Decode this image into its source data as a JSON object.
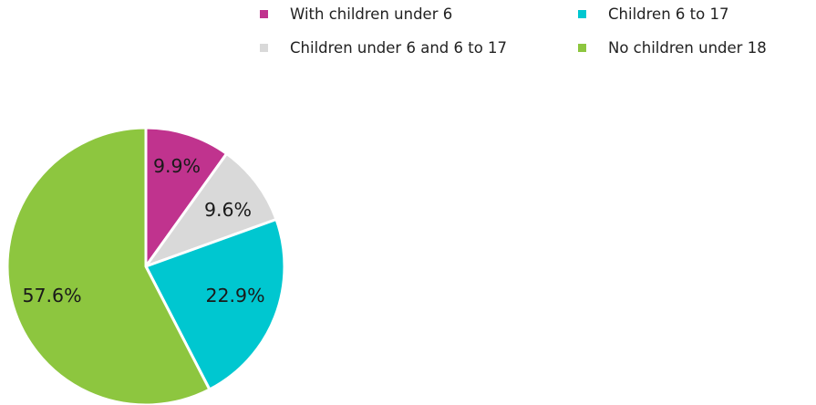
{
  "chart_data": {
    "type": "pie",
    "slices": [
      {
        "name": "With children under 6",
        "value": 9.9,
        "label": "9.9%",
        "color": "#c0338e"
      },
      {
        "name": "Children under 6 and 6 to 17",
        "value": 9.6,
        "label": "9.6%",
        "color": "#d9d9d9"
      },
      {
        "name": "Children 6 to 17",
        "value": 22.9,
        "label": "22.9%",
        "color": "#00c7d0"
      },
      {
        "name": "No children under 18",
        "value": 57.6,
        "label": "57.6%",
        "color": "#8dc63f"
      }
    ],
    "legend": {
      "placement": "top-right",
      "entries": [
        {
          "label": "With children under 6",
          "color": "#c0338e"
        },
        {
          "label": "Children 6 to 17",
          "color": "#00c7d0"
        },
        {
          "label": "Children under 6 and 6 to 17",
          "color": "#d9d9d9"
        },
        {
          "label": "No children under 18",
          "color": "#8dc63f"
        }
      ]
    }
  }
}
